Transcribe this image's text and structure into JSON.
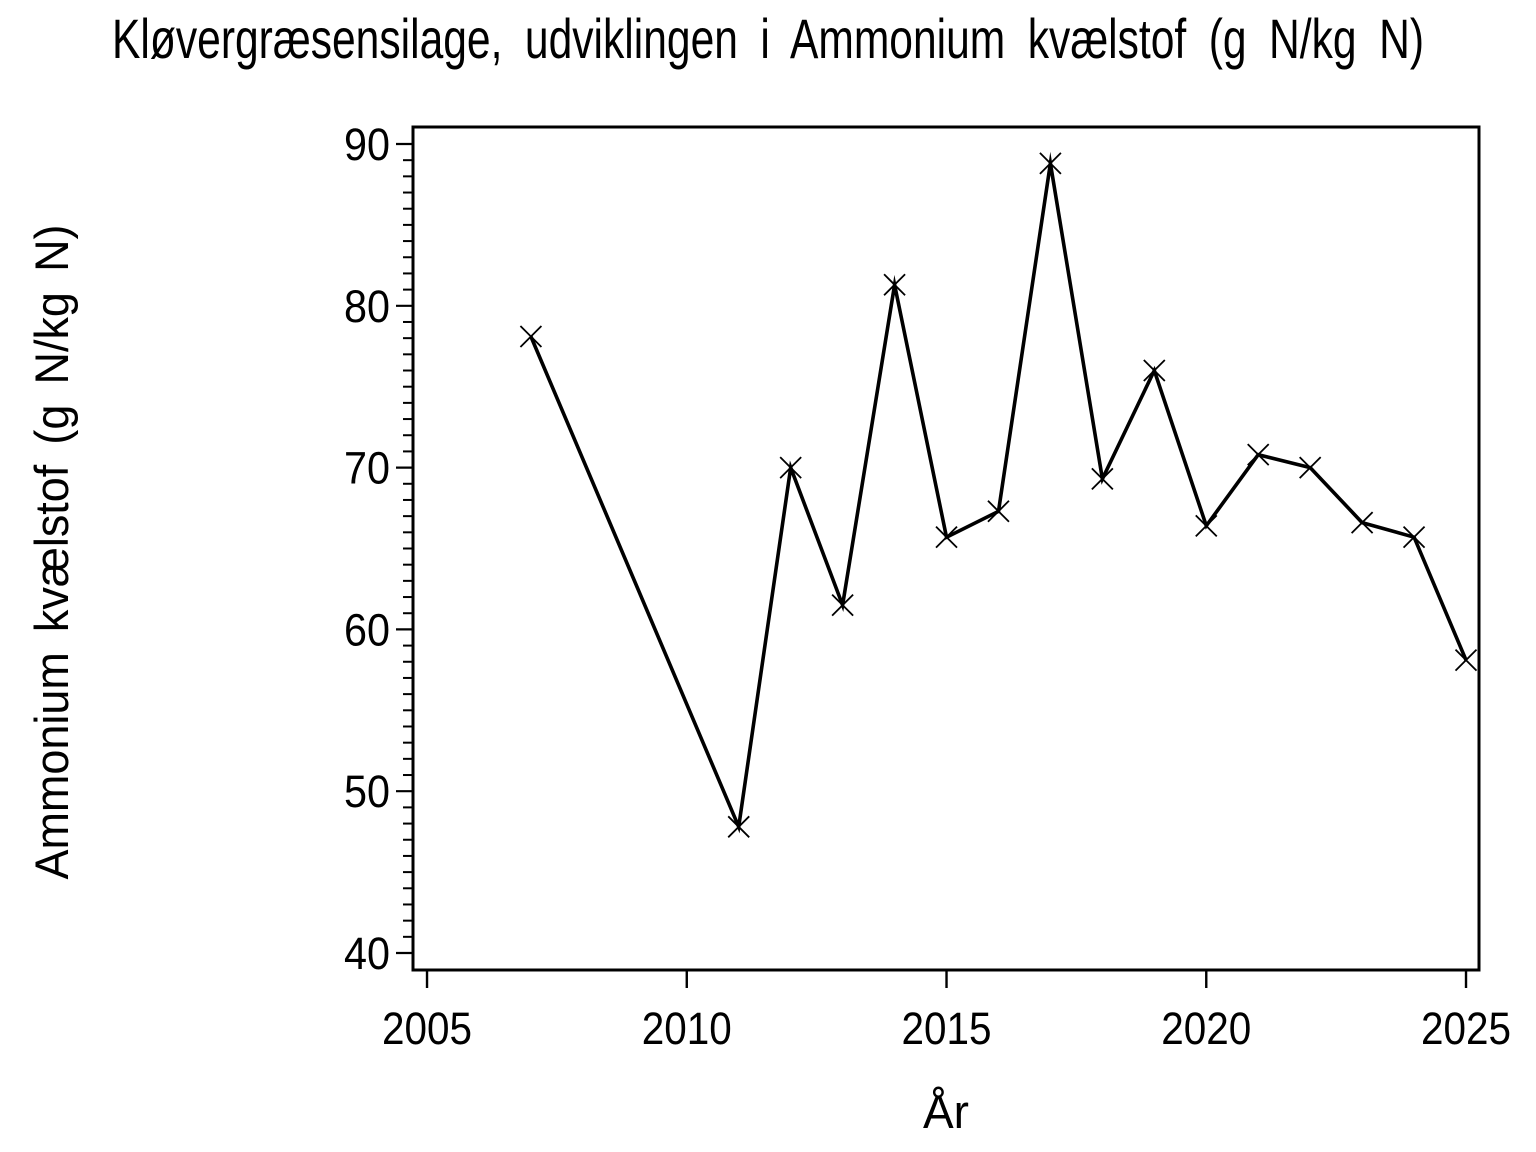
{
  "chart_data": {
    "type": "line",
    "title": "Kløvergræsensilage, udviklingen i Ammonium kvælstof (g N/kg N)",
    "xlabel": "År",
    "ylabel": "Ammonium kvælstof (g N/kg N)",
    "xlim": [
      2004.73,
      2025.25
    ],
    "ylim": [
      38.95,
      91.05
    ],
    "x_ticks": [
      2005,
      2010,
      2015,
      2020,
      2025
    ],
    "y_ticks": [
      40,
      50,
      60,
      70,
      80,
      90
    ],
    "y_minor_step": 1,
    "grid": false,
    "legend": "none",
    "marker": "x",
    "line_color": "#000000",
    "background_color": "#ffffff",
    "series": [
      {
        "name": "Ammonium kvælstof",
        "x": [
          2007,
          2011,
          2012,
          2013,
          2014,
          2015,
          2016,
          2017,
          2018,
          2019,
          2020,
          2021,
          2022,
          2023,
          2024,
          2025
        ],
        "y": [
          78.1,
          47.8,
          70.0,
          61.5,
          81.3,
          65.7,
          67.3,
          88.8,
          69.3,
          76.0,
          66.4,
          70.8,
          70.0,
          66.6,
          65.7,
          58.1
        ]
      }
    ]
  }
}
